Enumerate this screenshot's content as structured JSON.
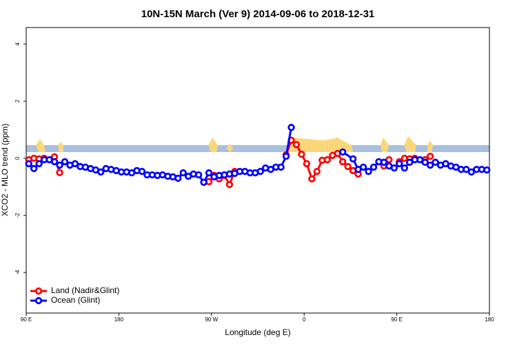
{
  "chart_data": {
    "type": "line",
    "title": "10N-15N March (Ver 9)   2014-09-06 to 2018-12-31",
    "x_label": "Longitude (deg E)",
    "y_label": "XCO2 - MLO trend (ppm)",
    "xlim": [
      90,
      540
    ],
    "ylim": [
      -5.42,
      4.58
    ],
    "xticks": [
      {
        "value": 90,
        "label": "90 E"
      },
      180,
      {
        "value": 270,
        "label": "90 W"
      },
      {
        "value": 360,
        "label": "0"
      },
      {
        "value": 450,
        "label": "90 E"
      },
      {
        "value": 540,
        "label": "180"
      }
    ],
    "yticks": [
      -4,
      -2,
      0,
      2,
      4
    ],
    "legend": "bottom-left",
    "series": [
      {
        "name": "Land (Nadir&Glint)",
        "color": "#ff0000",
        "x": [
          92.5,
          97.5,
          102.5,
          107.5,
          117.5,
          122.5,
          127.5,
          267.5,
          272.5,
          277.5,
          282.5,
          287.5,
          292.5,
          297.5,
          342.5,
          347.5,
          352.5,
          357.5,
          362.5,
          367.5,
          372.5,
          377.5,
          382.5,
          387.5,
          392.5,
          397.5,
          402.5,
          407.5,
          412.5,
          417.5,
          437.5,
          442.5,
          447.5,
          452.5,
          457.5,
          462.5,
          467.5,
          472.5,
          477.5,
          482.5
        ],
        "values": [
          -0.05,
          0,
          -0.02,
          0,
          0.05,
          -0.5,
          null,
          -0.82,
          -0.6,
          -0.72,
          -0.6,
          -0.92,
          -0.46,
          null,
          0.12,
          0.63,
          0.48,
          0.14,
          -0.19,
          -0.72,
          -0.46,
          -0.07,
          -0.05,
          0.1,
          0.17,
          -0.12,
          -0.29,
          -0.43,
          -0.55,
          null,
          -0.27,
          -0.05,
          null,
          -0.12,
          0,
          -0.02,
          0,
          null,
          -0.05,
          0.07
        ]
      },
      {
        "name": "Ocean (Glint)",
        "color": "#0000ff",
        "x": [
          92.5,
          97.5,
          102.5,
          107.5,
          112.5,
          117.5,
          122.5,
          127.5,
          132.5,
          137.5,
          142.5,
          147.5,
          152.5,
          157.5,
          162.5,
          167.5,
          172.5,
          177.5,
          182.5,
          187.5,
          192.5,
          197.5,
          202.5,
          207.5,
          212.5,
          217.5,
          222.5,
          227.5,
          232.5,
          237.5,
          242.5,
          247.5,
          252.5,
          257.5,
          262.5,
          267.5,
          272.5,
          277.5,
          282.5,
          287.5,
          292.5,
          297.5,
          302.5,
          307.5,
          312.5,
          317.5,
          322.5,
          327.5,
          332.5,
          337.5,
          342.5,
          347.5,
          352.5,
          397.5,
          407.5,
          412.5,
          417.5,
          422.5,
          427.5,
          432.5,
          437.5,
          442.5,
          447.5,
          452.5,
          457.5,
          462.5,
          467.5,
          472.5,
          477.5,
          482.5,
          487.5,
          492.5,
          497.5,
          502.5,
          507.5,
          512.5,
          517.5,
          522.5,
          527.5,
          532.5,
          537.5
        ],
        "values": [
          -0.19,
          -0.36,
          -0.19,
          -0.05,
          -0.05,
          -0.12,
          -0.24,
          -0.12,
          -0.24,
          -0.19,
          -0.29,
          -0.31,
          -0.36,
          -0.41,
          -0.48,
          -0.36,
          -0.39,
          -0.43,
          -0.48,
          -0.48,
          -0.51,
          -0.43,
          -0.46,
          -0.58,
          -0.58,
          -0.6,
          -0.58,
          -0.63,
          -0.65,
          -0.7,
          -0.51,
          -0.63,
          -0.55,
          -0.58,
          -0.84,
          -0.51,
          -0.65,
          -0.6,
          -0.58,
          -0.55,
          -0.53,
          -0.46,
          -0.46,
          -0.51,
          -0.51,
          -0.46,
          -0.34,
          -0.39,
          -0.31,
          -0.31,
          0.07,
          1.08,
          null,
          0.22,
          -0.02,
          -0.39,
          -0.31,
          -0.46,
          -0.31,
          -0.12,
          -0.14,
          -0.27,
          -0.34,
          -0.19,
          -0.34,
          -0.14,
          -0.05,
          -0.05,
          -0.14,
          -0.24,
          -0.14,
          -0.24,
          -0.19,
          -0.27,
          -0.31,
          -0.39,
          -0.39,
          -0.48,
          -0.39,
          -0.39,
          -0.41
        ]
      }
    ]
  }
}
